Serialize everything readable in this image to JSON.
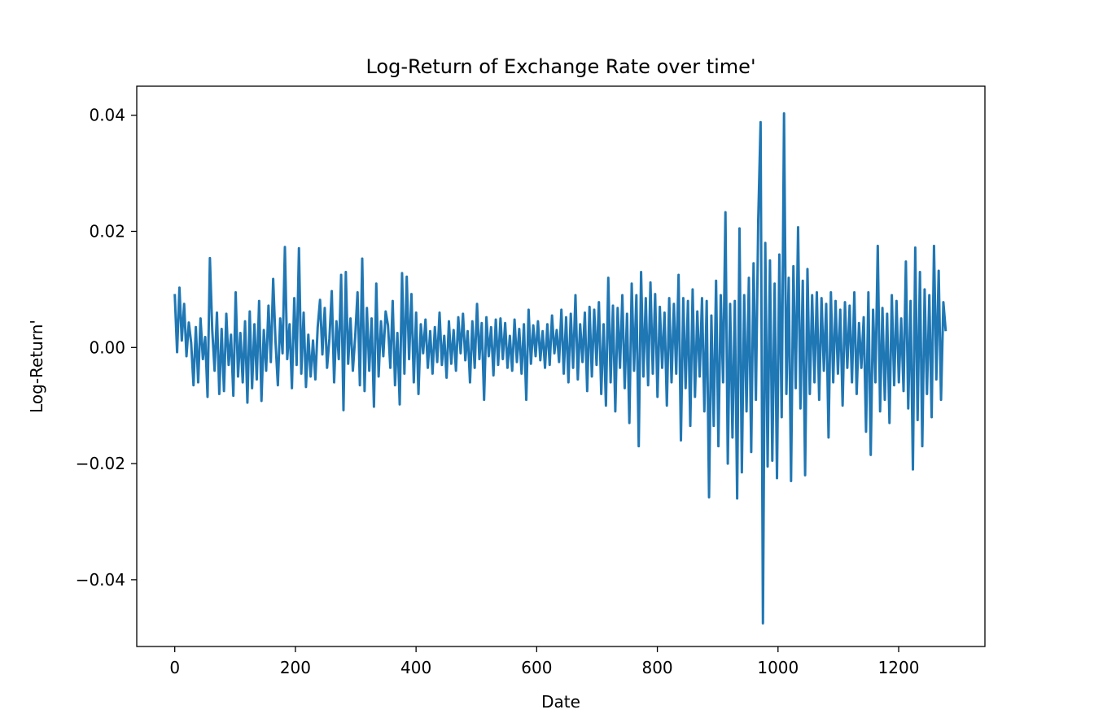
{
  "chart_data": {
    "type": "line",
    "title": "Log-Return of Exchange Rate over time'",
    "xlabel": "Date",
    "ylabel": "Log-Return'",
    "xlim": [
      -63,
      1343
    ],
    "ylim": [
      -0.0515,
      0.045
    ],
    "x_ticks": [
      0,
      200,
      400,
      600,
      800,
      1000,
      1200
    ],
    "x_tick_labels": [
      "0",
      "200",
      "400",
      "600",
      "800",
      "1000",
      "1200"
    ],
    "y_ticks": [
      0.04,
      0.02,
      0.0,
      -0.02,
      -0.04
    ],
    "y_tick_labels": [
      "0.04",
      "0.02",
      "0.00",
      "−0.02",
      "−0.04"
    ],
    "grid": false,
    "legend": "none",
    "series": [
      {
        "color": "#1f77b4",
        "x_start": 0,
        "x_end": 1278,
        "values": [
          0.0092,
          -0.0008,
          0.0103,
          0.0012,
          0.0075,
          -0.0015,
          0.0043,
          0.0008,
          -0.0065,
          0.0035,
          -0.006,
          0.005,
          -0.002,
          0.0018,
          -0.0085,
          0.0154,
          0.003,
          -0.004,
          0.006,
          -0.008,
          0.0032,
          -0.0075,
          0.0058,
          -0.003,
          0.0022,
          -0.0083,
          0.0095,
          -0.005,
          0.0025,
          -0.006,
          0.0045,
          -0.0095,
          0.0062,
          -0.007,
          0.004,
          -0.0055,
          0.008,
          -0.0092,
          0.003,
          -0.004,
          0.0072,
          -0.0025,
          0.0118,
          0.001,
          -0.0065,
          0.005,
          -0.001,
          0.0173,
          -0.002,
          0.004,
          -0.007,
          0.0085,
          -0.003,
          0.0171,
          -0.0045,
          0.006,
          -0.0068,
          0.0022,
          -0.005,
          0.0012,
          -0.0055,
          0.0035,
          0.0082,
          -0.0012,
          0.0068,
          -0.0035,
          0.0015,
          0.0097,
          -0.006,
          0.0045,
          -0.002,
          0.0125,
          -0.0108,
          0.013,
          -0.0028,
          0.005,
          -0.004,
          0.0018,
          0.0095,
          -0.0065,
          0.0153,
          -0.0075,
          0.0068,
          -0.004,
          0.005,
          -0.0102,
          0.011,
          -0.005,
          0.0045,
          -0.0015,
          0.0062,
          0.0038,
          -0.0035,
          0.008,
          -0.0065,
          0.0025,
          -0.0098,
          0.0128,
          -0.0045,
          0.0122,
          -0.002,
          0.0092,
          -0.006,
          0.006,
          -0.008,
          0.004,
          -0.001,
          0.0048,
          -0.0035,
          0.0028,
          -0.0045,
          0.0035,
          -0.0025,
          0.006,
          -0.003,
          0.002,
          -0.0052,
          0.0045,
          -0.0028,
          0.003,
          -0.004,
          0.0052,
          -0.001,
          0.0058,
          -0.0022,
          0.0028,
          -0.006,
          0.0045,
          -0.0035,
          0.0075,
          -0.002,
          0.0042,
          -0.009,
          0.0052,
          -0.0015,
          0.0035,
          -0.0048,
          0.0048,
          -0.003,
          0.005,
          -0.002,
          0.0042,
          -0.0035,
          0.002,
          -0.004,
          0.0048,
          -0.0025,
          0.0032,
          -0.0045,
          0.004,
          -0.009,
          0.0065,
          -0.0028,
          0.0038,
          -0.0015,
          0.0045,
          -0.0022,
          0.0028,
          -0.0035,
          0.004,
          -0.003,
          0.0055,
          -0.001,
          0.003,
          -0.0025,
          0.0065,
          -0.0045,
          0.0052,
          -0.006,
          0.0058,
          -0.0035,
          0.009,
          -0.0055,
          0.004,
          -0.0025,
          0.006,
          -0.0075,
          0.007,
          -0.005,
          0.0065,
          -0.003,
          0.0078,
          -0.008,
          0.004,
          -0.01,
          0.012,
          -0.006,
          0.0072,
          -0.011,
          0.0068,
          -0.0035,
          0.009,
          -0.007,
          0.0058,
          -0.013,
          0.011,
          -0.004,
          0.009,
          -0.017,
          0.013,
          -0.005,
          0.0085,
          -0.0065,
          0.0112,
          -0.0045,
          0.0092,
          -0.0085,
          0.007,
          -0.0035,
          0.006,
          -0.01,
          0.0085,
          -0.006,
          0.0075,
          -0.0045,
          0.0125,
          -0.016,
          0.0085,
          -0.007,
          0.008,
          -0.0135,
          0.01,
          -0.0085,
          0.0062,
          -0.005,
          0.0085,
          -0.011,
          0.008,
          -0.0258,
          0.0055,
          -0.0135,
          0.0115,
          -0.017,
          0.009,
          -0.006,
          0.0233,
          -0.02,
          0.0075,
          -0.0155,
          0.008,
          -0.026,
          0.0205,
          -0.0215,
          0.009,
          -0.011,
          0.012,
          -0.018,
          0.0145,
          -0.009,
          0.022,
          0.0388,
          -0.0475,
          0.018,
          -0.0205,
          0.015,
          -0.0195,
          0.011,
          -0.0225,
          0.016,
          -0.012,
          0.0403,
          -0.008,
          0.012,
          -0.023,
          0.014,
          -0.007,
          0.0207,
          -0.0105,
          0.0115,
          -0.022,
          0.0135,
          -0.008,
          0.009,
          -0.006,
          0.0095,
          -0.009,
          0.0085,
          -0.004,
          0.0075,
          -0.0155,
          0.0095,
          -0.006,
          0.008,
          -0.0045,
          0.0065,
          -0.01,
          0.0078,
          -0.0035,
          0.0072,
          -0.006,
          0.0095,
          -0.008,
          0.0042,
          -0.0035,
          0.0052,
          -0.0145,
          0.0095,
          -0.0185,
          0.0065,
          -0.006,
          0.0175,
          -0.011,
          0.0068,
          -0.009,
          0.0058,
          -0.013,
          0.009,
          -0.0065,
          0.008,
          -0.006,
          0.005,
          -0.0075,
          0.0148,
          -0.0105,
          0.008,
          -0.021,
          0.0172,
          -0.0125,
          0.013,
          -0.017,
          0.01,
          -0.008,
          0.009,
          -0.012,
          0.0175,
          -0.0055,
          0.0132,
          -0.009,
          0.0078,
          0.0028
        ]
      }
    ]
  }
}
